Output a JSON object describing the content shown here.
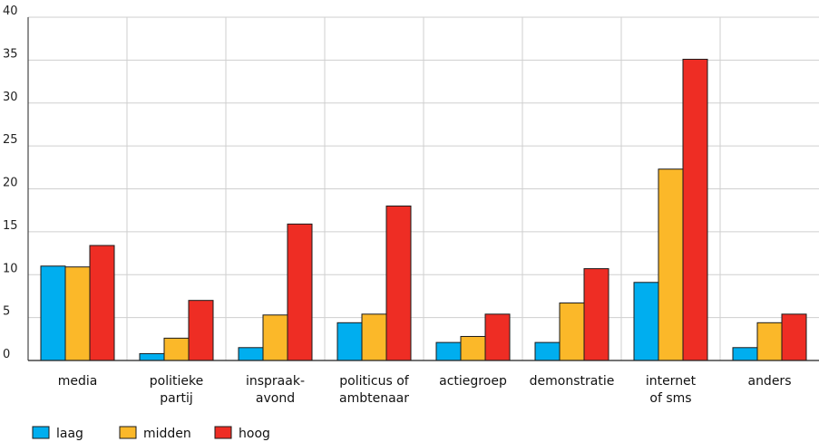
{
  "chart_data": {
    "type": "bar",
    "categories": [
      [
        "media"
      ],
      [
        "politieke",
        "partij"
      ],
      [
        "inspraak-",
        "avond"
      ],
      [
        "politicus of",
        "ambtenaar"
      ],
      [
        "actiegroep"
      ],
      [
        "demonstratie"
      ],
      [
        "internet",
        "of sms"
      ],
      [
        "anders"
      ]
    ],
    "series": [
      {
        "name": "laag",
        "color": "#00aeef",
        "values": [
          11.0,
          0.8,
          1.5,
          4.4,
          2.1,
          2.1,
          9.1,
          1.5
        ]
      },
      {
        "name": "midden",
        "color": "#fbb829",
        "values": [
          10.9,
          2.6,
          5.3,
          5.4,
          2.8,
          6.7,
          22.3,
          4.4
        ]
      },
      {
        "name": "hoog",
        "color": "#ee2d24",
        "values": [
          13.4,
          7.0,
          15.9,
          18.0,
          5.4,
          10.7,
          35.1,
          5.4
        ]
      }
    ],
    "ylim": [
      0,
      40
    ],
    "yticks": [
      0,
      5,
      10,
      15,
      20,
      25,
      30,
      35,
      40
    ],
    "grid": true,
    "legend_position": "bottom-left",
    "title": "",
    "xlabel": "",
    "ylabel": ""
  }
}
